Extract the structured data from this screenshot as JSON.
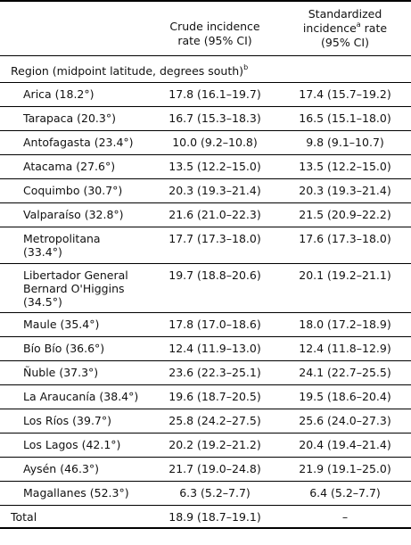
{
  "header": {
    "col2_line1": "Crude incidence",
    "col2_line2": "rate (95% CI)",
    "col3_line1": "Standardized",
    "col3_line2_pre": "incidence",
    "col3_line2_sup": "a",
    "col3_line2_post": " rate",
    "col3_line3": "(95% CI)"
  },
  "section": {
    "label": "Region (midpoint latitude, degrees south)",
    "sup": "b"
  },
  "rows": [
    {
      "region": "Arica (18.2°)",
      "crude": "17.8 (16.1–19.7)",
      "std": "17.4 (15.7–19.2)"
    },
    {
      "region": "Tarapaca (20.3°)",
      "crude": "16.7 (15.3–18.3)",
      "std": "16.5 (15.1–18.0)"
    },
    {
      "region": "Antofagasta (23.4°)",
      "crude": "10.0 (9.2–10.8)",
      "std": "9.8 (9.1–10.7)"
    },
    {
      "region": "Atacama (27.6°)",
      "crude": "13.5 (12.2–15.0)",
      "std": "13.5 (12.2–15.0)"
    },
    {
      "region": "Coquimbo (30.7°)",
      "crude": "20.3 (19.3–21.4)",
      "std": "20.3 (19.3–21.4)"
    },
    {
      "region": "Valparaíso (32.8°)",
      "crude": "21.6 (21.0–22.3)",
      "std": "21.5 (20.9–22.2)"
    },
    {
      "region": "Metropolitana (33.4°)",
      "crude": "17.7 (17.3–18.0)",
      "std": "17.6 (17.3–18.0)"
    },
    {
      "region": "Libertador General Bernard O'Higgins (34.5°)",
      "crude": "19.7 (18.8–20.6)",
      "std": "20.1 (19.2–21.1)"
    },
    {
      "region": "Maule (35.4°)",
      "crude": "17.8 (17.0–18.6)",
      "std": "18.0 (17.2–18.9)"
    },
    {
      "region": "Bío Bío (36.6°)",
      "crude": "12.4 (11.9–13.0)",
      "std": "12.4 (11.8–12.9)"
    },
    {
      "region": "Ñuble (37.3°)",
      "crude": "23.6 (22.3–25.1)",
      "std": "24.1 (22.7–25.5)"
    },
    {
      "region": "La Araucanía (38.4°)",
      "crude": "19.6 (18.7–20.5)",
      "std": "19.5 (18.6–20.4)"
    },
    {
      "region": "Los Ríos (39.7°)",
      "crude": "25.8 (24.2–27.5)",
      "std": "25.6 (24.0–27.3)"
    },
    {
      "region": "Los Lagos (42.1°)",
      "crude": "20.2 (19.2–21.2)",
      "std": "20.4 (19.4–21.4)"
    },
    {
      "region": "Aysén (46.3°)",
      "crude": "21.7 (19.0–24.8)",
      "std": "21.9 (19.1–25.0)"
    },
    {
      "region": "Magallanes (52.3°)",
      "crude": "6.3 (5.2–7.7)",
      "std": "6.4 (5.2–7.7)"
    }
  ],
  "total": {
    "label": "Total",
    "crude": "18.9 (18.7–19.1)",
    "std": "–"
  }
}
